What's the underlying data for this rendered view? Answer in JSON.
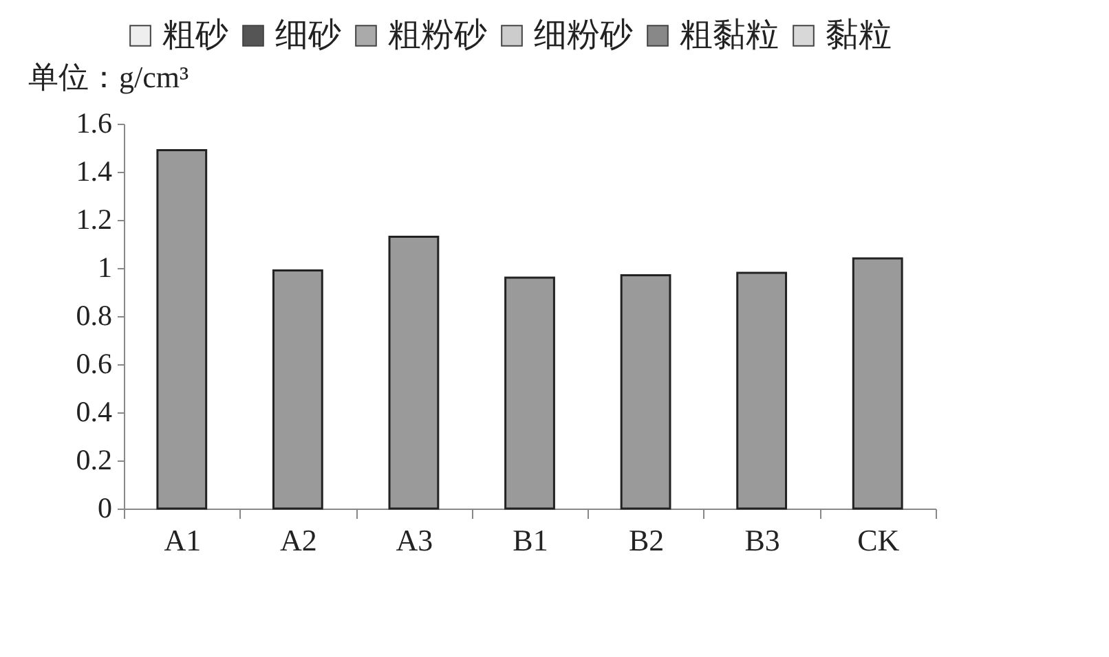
{
  "chart_data": {
    "type": "bar",
    "ylabel": "单位：g/cm³",
    "categories": [
      "A1",
      "A2",
      "A3",
      "B1",
      "B2",
      "B3",
      "CK"
    ],
    "series": [
      {
        "color": "#9a9a9a",
        "values": [
          1.49,
          0.99,
          1.13,
          0.96,
          0.97,
          0.98,
          1.04
        ]
      },
      {
        "name": "粗砂",
        "color": "#eeeeee",
        "values": [
          null,
          null,
          null,
          null,
          null,
          null,
          null
        ]
      },
      {
        "name": "细砂",
        "color": "#555555",
        "values": [
          null,
          null,
          null,
          null,
          null,
          null,
          null
        ]
      },
      {
        "name": "粗粉砂",
        "color": "#aaaaaa",
        "values": [
          null,
          null,
          null,
          null,
          null,
          null,
          null
        ]
      },
      {
        "name": "细粉砂",
        "color": "#cccccc",
        "values": [
          null,
          null,
          null,
          null,
          null,
          null,
          null
        ]
      },
      {
        "name": "粗黏粒",
        "color": "#888888",
        "values": [
          null,
          null,
          null,
          null,
          null,
          null,
          null
        ]
      },
      {
        "name": "黏粒",
        "color": "#d8d8d8",
        "values": [
          null,
          null,
          null,
          null,
          null,
          null,
          null
        ]
      }
    ],
    "ylim": [
      0,
      1.6
    ],
    "yticks": [
      0,
      0.2,
      0.4,
      0.6,
      0.8,
      1,
      1.2,
      1.4,
      1.6
    ],
    "grid": false,
    "legend": "top"
  }
}
